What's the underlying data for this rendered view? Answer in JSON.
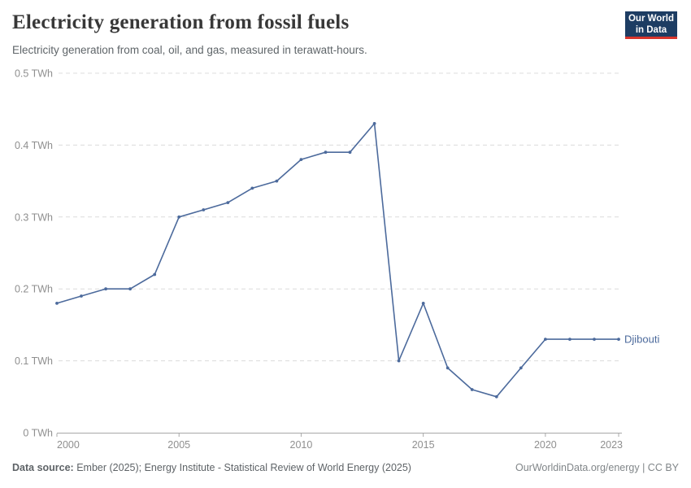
{
  "header": {
    "title": "Electricity generation from fossil fuels",
    "subtitle": "Electricity generation from coal, oil, and gas, measured in terawatt-hours.",
    "logo": {
      "line1": "Our World",
      "line2": "in Data"
    }
  },
  "chart_data": {
    "type": "line",
    "title": "Electricity generation from fossil fuels",
    "xlabel": "",
    "ylabel": "TWh",
    "xlim": [
      2000,
      2023
    ],
    "ylim": [
      0,
      0.5
    ],
    "grid": "horizontal-dashed",
    "legend_position": "end-of-line",
    "x": [
      2000,
      2001,
      2002,
      2003,
      2004,
      2005,
      2006,
      2007,
      2008,
      2009,
      2010,
      2011,
      2012,
      2013,
      2014,
      2015,
      2016,
      2017,
      2018,
      2019,
      2020,
      2021,
      2022,
      2023
    ],
    "series": [
      {
        "name": "Djibouti",
        "color": "#4c6a9c",
        "values": [
          0.18,
          0.19,
          0.2,
          0.2,
          0.22,
          0.3,
          0.31,
          0.32,
          0.34,
          0.35,
          0.38,
          0.39,
          0.39,
          0.43,
          0.1,
          0.18,
          0.09,
          0.06,
          0.05,
          0.09,
          0.13,
          0.13,
          0.13,
          0.13
        ]
      }
    ],
    "yticks": [
      0,
      0.1,
      0.2,
      0.3,
      0.4,
      0.5
    ],
    "ytick_labels": [
      "0 TWh",
      "0.1 TWh",
      "0.2 TWh",
      "0.3 TWh",
      "0.4 TWh",
      "0.5 TWh"
    ],
    "xticks": [
      2000,
      2005,
      2010,
      2015,
      2020,
      2023
    ],
    "xtick_labels": [
      "2000",
      "2005",
      "2010",
      "2015",
      "2020",
      "2023"
    ]
  },
  "footer": {
    "datasource_label": "Data source:",
    "datasource_text": " Ember (2025); Energy Institute - Statistical Review of World Energy (2025)",
    "rights": "OurWorldinData.org/energy | CC BY"
  },
  "colors": {
    "accent_line": "#4c6a9c",
    "logo_bg": "#1d3d63",
    "logo_red": "#d8352c",
    "grid": "#dcdcdc",
    "axis": "#a8a8a8",
    "tick_label": "#8f8f8f"
  }
}
